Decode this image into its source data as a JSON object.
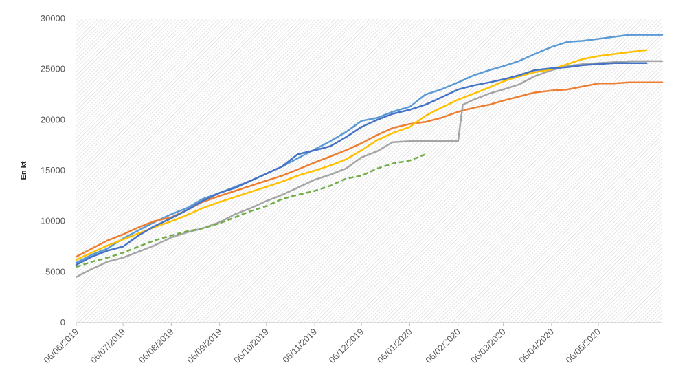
{
  "chart_data": {
    "type": "line",
    "ylabel": "En kt",
    "ylim": [
      0,
      30000
    ],
    "yticks": [
      "0",
      "5000",
      "10000",
      "15000",
      "20000",
      "25000",
      "30000"
    ],
    "xlim": [
      "2019-06-06",
      "2020-06-16"
    ],
    "xticks": [
      "06/06/2019",
      "06/07/2019",
      "06/08/2019",
      "06/09/2019",
      "06/10/2019",
      "06/11/2019",
      "06/12/2019",
      "06/01/2020",
      "06/02/2020",
      "06/03/2020",
      "06/04/2020",
      "06/05/2020"
    ],
    "xtick_dates": [
      "2019-06-06",
      "2019-07-06",
      "2019-08-06",
      "2019-09-06",
      "2019-10-06",
      "2019-11-06",
      "2019-12-06",
      "2020-01-06",
      "2020-02-06",
      "2020-03-06",
      "2020-04-06",
      "2020-05-06"
    ],
    "grid": false,
    "plot_background": "diagonal-hatch",
    "series": [
      {
        "color": "#5B9BD5",
        "dash": false,
        "points": [
          [
            "2019-06-06",
            5900
          ],
          [
            "2019-06-16",
            6700
          ],
          [
            "2019-06-26",
            7300
          ],
          [
            "2019-07-06",
            8300
          ],
          [
            "2019-07-16",
            9100
          ],
          [
            "2019-07-26",
            9900
          ],
          [
            "2019-08-06",
            10700
          ],
          [
            "2019-08-16",
            11300
          ],
          [
            "2019-08-26",
            12200
          ],
          [
            "2019-09-06",
            12800
          ],
          [
            "2019-09-16",
            13400
          ],
          [
            "2019-09-26",
            14000
          ],
          [
            "2019-10-06",
            14700
          ],
          [
            "2019-10-16",
            15400
          ],
          [
            "2019-10-26",
            16200
          ],
          [
            "2019-11-06",
            17100
          ],
          [
            "2019-11-16",
            17900
          ],
          [
            "2019-11-26",
            18800
          ],
          [
            "2019-12-06",
            19900
          ],
          [
            "2019-12-16",
            20200
          ],
          [
            "2019-12-26",
            20800
          ],
          [
            "2020-01-06",
            21300
          ],
          [
            "2020-01-16",
            22500
          ],
          [
            "2020-01-26",
            23000
          ],
          [
            "2020-02-06",
            23700
          ],
          [
            "2020-02-16",
            24400
          ],
          [
            "2020-02-26",
            24900
          ],
          [
            "2020-03-06",
            25300
          ],
          [
            "2020-03-16",
            25800
          ],
          [
            "2020-03-26",
            26500
          ],
          [
            "2020-04-06",
            27200
          ],
          [
            "2020-04-16",
            27700
          ],
          [
            "2020-04-26",
            27800
          ],
          [
            "2020-05-06",
            28000
          ],
          [
            "2020-05-16",
            28200
          ],
          [
            "2020-05-26",
            28400
          ],
          [
            "2020-06-06",
            28400
          ],
          [
            "2020-06-16",
            28400
          ]
        ]
      },
      {
        "color": "#ED7D31",
        "dash": false,
        "points": [
          [
            "2019-06-06",
            6500
          ],
          [
            "2019-06-16",
            7300
          ],
          [
            "2019-06-26",
            8100
          ],
          [
            "2019-07-06",
            8700
          ],
          [
            "2019-07-16",
            9400
          ],
          [
            "2019-07-26",
            10000
          ],
          [
            "2019-08-06",
            10400
          ],
          [
            "2019-08-16",
            11100
          ],
          [
            "2019-08-26",
            11900
          ],
          [
            "2019-09-06",
            12500
          ],
          [
            "2019-09-16",
            13000
          ],
          [
            "2019-09-26",
            13500
          ],
          [
            "2019-10-06",
            14000
          ],
          [
            "2019-10-16",
            14500
          ],
          [
            "2019-10-26",
            15100
          ],
          [
            "2019-11-06",
            15800
          ],
          [
            "2019-11-16",
            16400
          ],
          [
            "2019-11-26",
            17000
          ],
          [
            "2019-12-06",
            17700
          ],
          [
            "2019-12-16",
            18500
          ],
          [
            "2019-12-26",
            19200
          ],
          [
            "2020-01-06",
            19600
          ],
          [
            "2020-01-16",
            19800
          ],
          [
            "2020-01-26",
            20200
          ],
          [
            "2020-02-06",
            20800
          ],
          [
            "2020-02-16",
            21200
          ],
          [
            "2020-02-26",
            21500
          ],
          [
            "2020-03-06",
            21900
          ],
          [
            "2020-03-16",
            22300
          ],
          [
            "2020-03-26",
            22700
          ],
          [
            "2020-04-06",
            22900
          ],
          [
            "2020-04-16",
            23000
          ],
          [
            "2020-04-26",
            23300
          ],
          [
            "2020-05-06",
            23600
          ],
          [
            "2020-05-16",
            23600
          ],
          [
            "2020-05-26",
            23700
          ],
          [
            "2020-06-06",
            23700
          ],
          [
            "2020-06-16",
            23700
          ]
        ]
      },
      {
        "color": "#A5A5A5",
        "dash": false,
        "points": [
          [
            "2019-06-06",
            4500
          ],
          [
            "2019-06-16",
            5300
          ],
          [
            "2019-06-26",
            6000
          ],
          [
            "2019-07-06",
            6400
          ],
          [
            "2019-07-16",
            7000
          ],
          [
            "2019-07-26",
            7600
          ],
          [
            "2019-08-06",
            8400
          ],
          [
            "2019-08-16",
            8900
          ],
          [
            "2019-08-26",
            9300
          ],
          [
            "2019-09-06",
            9900
          ],
          [
            "2019-09-16",
            10700
          ],
          [
            "2019-09-26",
            11300
          ],
          [
            "2019-10-06",
            12000
          ],
          [
            "2019-10-16",
            12600
          ],
          [
            "2019-10-26",
            13300
          ],
          [
            "2019-11-06",
            14100
          ],
          [
            "2019-11-16",
            14600
          ],
          [
            "2019-11-26",
            15200
          ],
          [
            "2019-12-06",
            16300
          ],
          [
            "2019-12-16",
            16900
          ],
          [
            "2019-12-26",
            17800
          ],
          [
            "2020-01-06",
            17900
          ],
          [
            "2020-01-16",
            17900
          ],
          [
            "2020-01-26",
            17900
          ],
          [
            "2020-02-06",
            17900
          ],
          [
            "2020-02-09",
            21500
          ],
          [
            "2020-02-16",
            22000
          ],
          [
            "2020-02-26",
            22600
          ],
          [
            "2020-03-06",
            23000
          ],
          [
            "2020-03-16",
            23500
          ],
          [
            "2020-03-26",
            24300
          ],
          [
            "2020-04-06",
            24900
          ],
          [
            "2020-04-16",
            25300
          ],
          [
            "2020-04-26",
            25500
          ],
          [
            "2020-05-06",
            25600
          ],
          [
            "2020-05-16",
            25700
          ],
          [
            "2020-05-26",
            25800
          ],
          [
            "2020-06-06",
            25800
          ],
          [
            "2020-06-16",
            25800
          ]
        ]
      },
      {
        "color": "#FFC000",
        "dash": false,
        "points": [
          [
            "2019-06-06",
            6200
          ],
          [
            "2019-06-16",
            6900
          ],
          [
            "2019-06-26",
            7600
          ],
          [
            "2019-07-06",
            8200
          ],
          [
            "2019-07-16",
            8800
          ],
          [
            "2019-07-26",
            9400
          ],
          [
            "2019-08-06",
            10000
          ],
          [
            "2019-08-16",
            10600
          ],
          [
            "2019-08-26",
            11300
          ],
          [
            "2019-09-06",
            11900
          ],
          [
            "2019-09-16",
            12400
          ],
          [
            "2019-09-26",
            12900
          ],
          [
            "2019-10-06",
            13400
          ],
          [
            "2019-10-16",
            13900
          ],
          [
            "2019-10-26",
            14500
          ],
          [
            "2019-11-06",
            15000
          ],
          [
            "2019-11-16",
            15500
          ],
          [
            "2019-11-26",
            16100
          ],
          [
            "2019-12-06",
            17000
          ],
          [
            "2019-12-16",
            18000
          ],
          [
            "2019-12-26",
            18700
          ],
          [
            "2020-01-06",
            19300
          ],
          [
            "2020-01-16",
            20400
          ],
          [
            "2020-01-26",
            21200
          ],
          [
            "2020-02-06",
            22000
          ],
          [
            "2020-02-16",
            22600
          ],
          [
            "2020-02-26",
            23200
          ],
          [
            "2020-03-06",
            23800
          ],
          [
            "2020-03-16",
            24300
          ],
          [
            "2020-03-26",
            24700
          ],
          [
            "2020-04-06",
            25000
          ],
          [
            "2020-04-16",
            25500
          ],
          [
            "2020-04-26",
            26000
          ],
          [
            "2020-05-06",
            26300
          ],
          [
            "2020-05-16",
            26500
          ],
          [
            "2020-05-26",
            26700
          ],
          [
            "2020-06-06",
            26900
          ]
        ]
      },
      {
        "color": "#4472C4",
        "dash": false,
        "points": [
          [
            "2019-06-06",
            5700
          ],
          [
            "2019-06-16",
            6500
          ],
          [
            "2019-06-26",
            7100
          ],
          [
            "2019-07-06",
            7500
          ],
          [
            "2019-07-16",
            8600
          ],
          [
            "2019-07-26",
            9500
          ],
          [
            "2019-08-06",
            10300
          ],
          [
            "2019-08-16",
            11100
          ],
          [
            "2019-08-26",
            12000
          ],
          [
            "2019-09-06",
            12800
          ],
          [
            "2019-09-16",
            13300
          ],
          [
            "2019-09-26",
            14000
          ],
          [
            "2019-10-06",
            14700
          ],
          [
            "2019-10-16",
            15400
          ],
          [
            "2019-10-26",
            16600
          ],
          [
            "2019-11-06",
            17000
          ],
          [
            "2019-11-16",
            17400
          ],
          [
            "2019-11-26",
            18300
          ],
          [
            "2019-12-06",
            19300
          ],
          [
            "2019-12-16",
            20000
          ],
          [
            "2019-12-26",
            20600
          ],
          [
            "2020-01-06",
            21000
          ],
          [
            "2020-01-16",
            21500
          ],
          [
            "2020-01-26",
            22200
          ],
          [
            "2020-02-06",
            23000
          ],
          [
            "2020-02-16",
            23400
          ],
          [
            "2020-02-26",
            23700
          ],
          [
            "2020-03-06",
            24000
          ],
          [
            "2020-03-16",
            24400
          ],
          [
            "2020-03-26",
            24900
          ],
          [
            "2020-04-06",
            25100
          ],
          [
            "2020-04-16",
            25200
          ],
          [
            "2020-04-26",
            25400
          ],
          [
            "2020-05-06",
            25500
          ],
          [
            "2020-05-16",
            25600
          ],
          [
            "2020-05-26",
            25600
          ],
          [
            "2020-06-06",
            25600
          ]
        ]
      },
      {
        "color": "#70AD47",
        "dash": true,
        "points": [
          [
            "2019-06-06",
            5500
          ],
          [
            "2019-06-16",
            6000
          ],
          [
            "2019-06-26",
            6400
          ],
          [
            "2019-07-06",
            6900
          ],
          [
            "2019-07-16",
            7500
          ],
          [
            "2019-07-26",
            8100
          ],
          [
            "2019-08-06",
            8600
          ],
          [
            "2019-08-16",
            9000
          ],
          [
            "2019-08-26",
            9300
          ],
          [
            "2019-09-06",
            9800
          ],
          [
            "2019-09-16",
            10400
          ],
          [
            "2019-09-26",
            11000
          ],
          [
            "2019-10-06",
            11500
          ],
          [
            "2019-10-16",
            12200
          ],
          [
            "2019-10-26",
            12600
          ],
          [
            "2019-11-06",
            13000
          ],
          [
            "2019-11-16",
            13500
          ],
          [
            "2019-11-26",
            14200
          ],
          [
            "2019-12-06",
            14500
          ],
          [
            "2019-12-16",
            15200
          ],
          [
            "2019-12-26",
            15700
          ],
          [
            "2020-01-06",
            16000
          ],
          [
            "2020-01-16",
            16600
          ]
        ]
      }
    ]
  }
}
